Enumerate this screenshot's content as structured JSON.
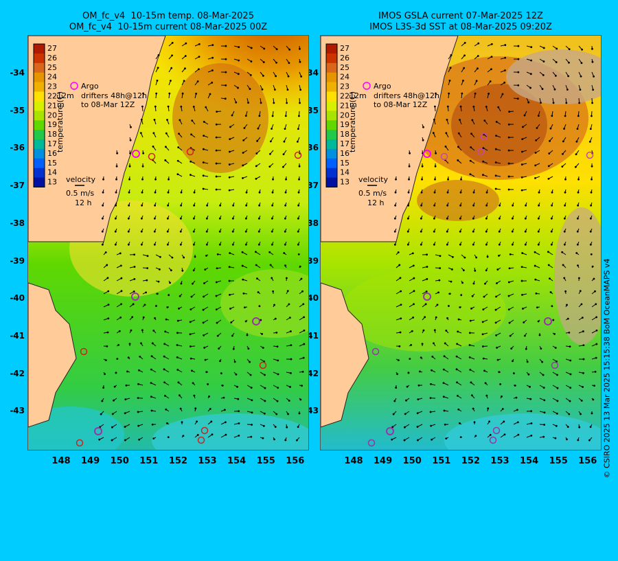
{
  "left_panel": {
    "title_line1": "OM_fc_v4  10-15m temp. 08-Mar-2025",
    "title_line2": "OM_fc_v4  10-15m current 08-Mar-2025 00Z"
  },
  "right_panel": {
    "title_line1": "IMOS GSLA current 07-Mar-2025 12Z",
    "title_line2": "IMOS L3S-3d SST at 08-Mar-2025 09:20Z"
  },
  "colorbar": {
    "label": "temperature (C)",
    "ticks": [
      "27",
      "26",
      "25",
      "24",
      "23",
      "22",
      "21",
      "20",
      "19",
      "18",
      "17",
      "16",
      "15",
      "14",
      "13"
    ],
    "colors": [
      "#b01a00",
      "#cc3300",
      "#d9661a",
      "#e69500",
      "#f0b000",
      "#ffe000",
      "#d8f000",
      "#a8e400",
      "#60d800",
      "#22c84a",
      "#00b89a",
      "#0090e0",
      "#0060ff",
      "#0030d0",
      "#0010a0"
    ]
  },
  "legend": {
    "argo_label": "Argo",
    "drifter_12m": "12m",
    "drifter_label": "drifters 48h@12h",
    "m_label": "m",
    "to_label": "to 08-Mar 12Z",
    "velocity_label": "velocity",
    "velocity_value": "0.5 m/s",
    "velocity_time": "12 h"
  },
  "axes": {
    "y_ticks": [
      "-34",
      "-35",
      "-36",
      "-37",
      "-38",
      "-39",
      "-40",
      "-41",
      "-42",
      "-43"
    ],
    "x_ticks": [
      "148",
      "149",
      "150",
      "151",
      "152",
      "153",
      "154",
      "155",
      "156"
    ]
  },
  "credit": "© CSIRO 2025   13 Mar 2025 15:15:38 BoM OceanMAPS v4",
  "colors": {
    "background": "#00ccff",
    "land": "#ffcc99",
    "argo": "#ff00ff",
    "drifter": "#cc2222"
  }
}
